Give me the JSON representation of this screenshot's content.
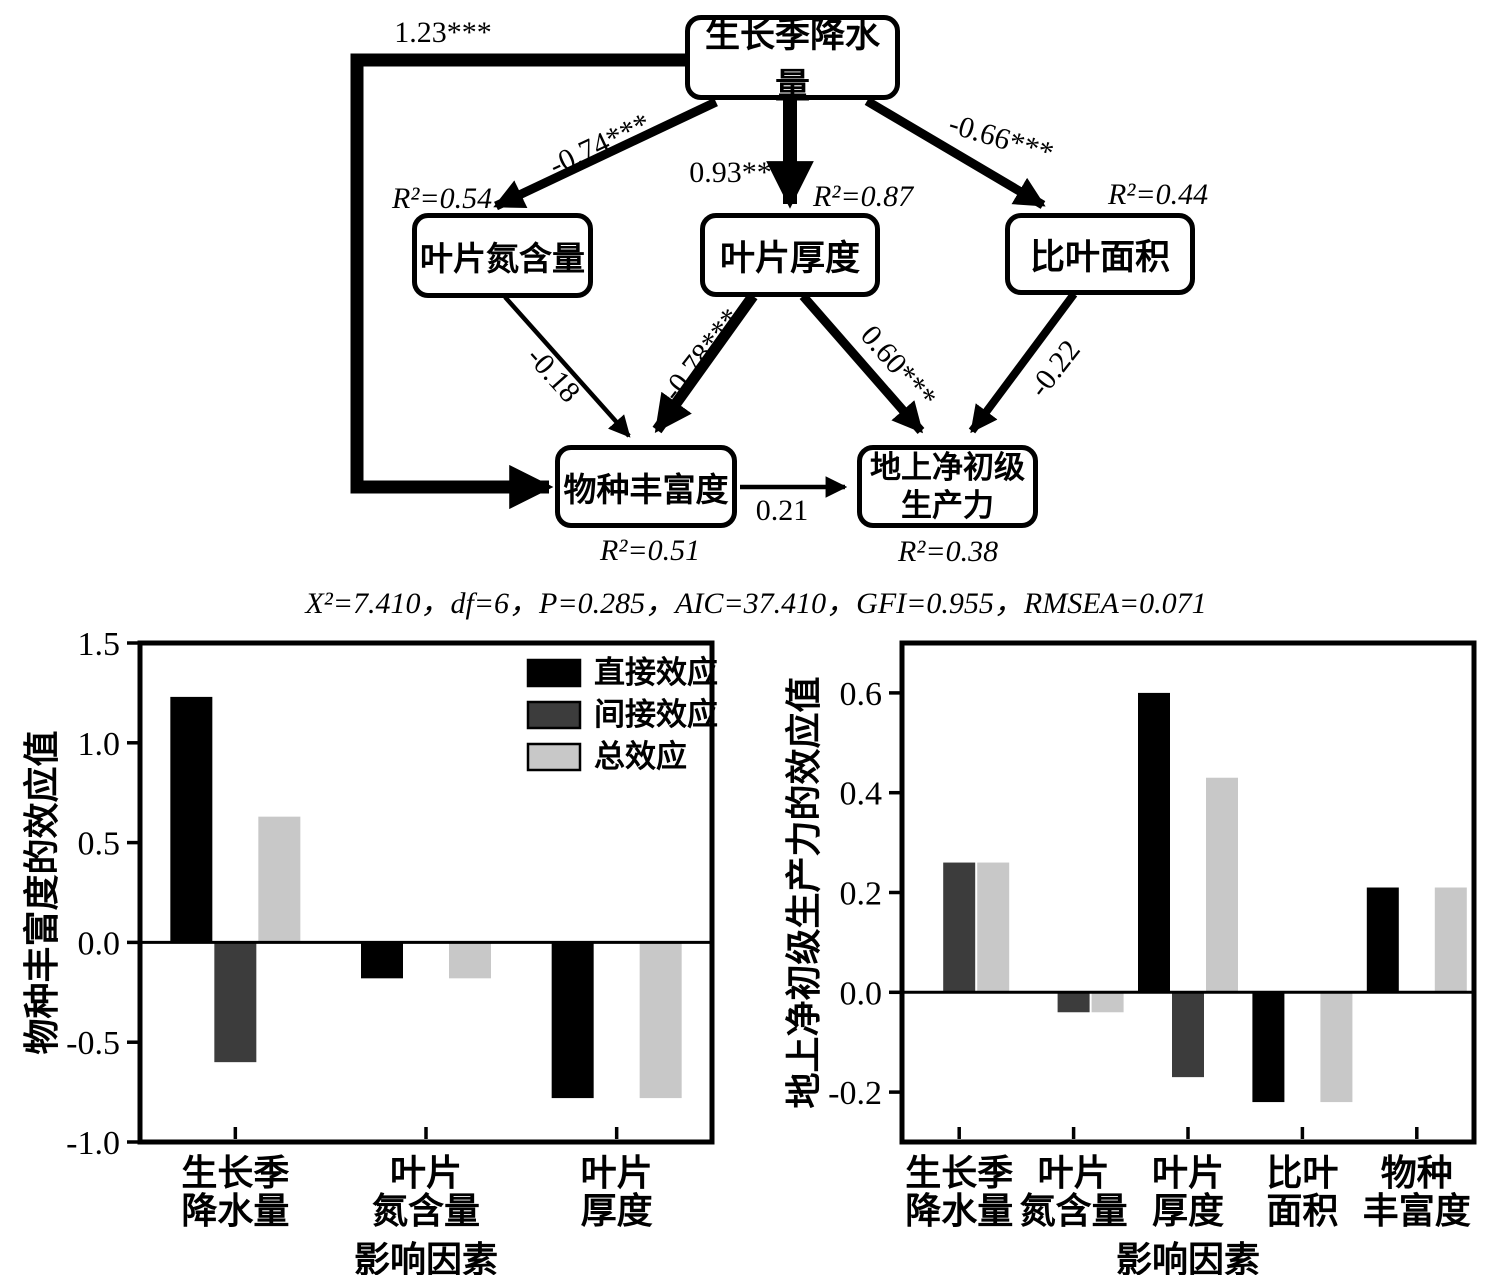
{
  "sem": {
    "nodes": {
      "gsp": "生长季降水量",
      "lnc": "叶片氮含量",
      "lt": "叶片厚度",
      "sla": "比叶面积",
      "sr": "物种丰富度",
      "anpp": "地上净初级\n生产力"
    },
    "paths": {
      "gsp_sr": "1.23***",
      "gsp_lnc": "-0.74***",
      "gsp_lt": "0.93***",
      "gsp_sla": "-0.66***",
      "lnc_sr": "-0.18",
      "lt_sr": "-0.78***",
      "lt_anpp": "0.60***",
      "sla_anpp": "-0.22",
      "sr_anpp": "0.21"
    },
    "r2": {
      "lnc": "R²=0.54",
      "lt": "R²=0.87",
      "sla": "R²=0.44",
      "sr": "R²=0.51",
      "anpp": "R²=0.38"
    },
    "fit_stats": "X²=7.410，df=6，P=0.285，AIC=37.410，GFI=0.955，RMSEA=0.071"
  },
  "colors": {
    "direct": "#000000",
    "indirect": "#3c3c3c",
    "total": "#c8c8c8",
    "axis": "#000000",
    "background": "#ffffff"
  },
  "chart_data": [
    {
      "type": "bar",
      "title": "",
      "ylabel": "物种丰富度的效应值",
      "xlabel": "影响因素",
      "categories": [
        [
          "生长季",
          "降水量"
        ],
        [
          "叶片",
          "氮含量"
        ],
        [
          "叶片",
          "厚度"
        ]
      ],
      "series": [
        {
          "name": "直接效应",
          "color": "#000000",
          "values": [
            1.23,
            -0.18,
            -0.78
          ]
        },
        {
          "name": "间接效应",
          "color": "#3c3c3c",
          "values": [
            -0.6,
            null,
            null
          ]
        },
        {
          "name": "总效应",
          "color": "#c8c8c8",
          "values": [
            0.63,
            -0.18,
            -0.78
          ]
        }
      ],
      "ylim": [
        -1.0,
        1.5
      ],
      "yticks": [
        "1.5",
        "1.0",
        "0.5",
        "0.0",
        "-0.5",
        "-1.0"
      ],
      "grid": false,
      "legend": true,
      "legend_position": "top-right-inside"
    },
    {
      "type": "bar",
      "title": "",
      "ylabel": "地上净初级生产力的效应值",
      "xlabel": "影响因素",
      "categories": [
        [
          "生长季",
          "降水量"
        ],
        [
          "叶片",
          "氮含量"
        ],
        [
          "叶片",
          "厚度"
        ],
        [
          "比叶",
          "面积"
        ],
        [
          "物种",
          "丰富度"
        ]
      ],
      "series": [
        {
          "name": "直接效应",
          "color": "#000000",
          "values": [
            null,
            null,
            0.6,
            -0.22,
            0.21
          ]
        },
        {
          "name": "间接效应",
          "color": "#3c3c3c",
          "values": [
            0.26,
            -0.04,
            -0.17,
            null,
            null
          ]
        },
        {
          "name": "总效应",
          "color": "#c8c8c8",
          "values": [
            0.26,
            -0.04,
            0.43,
            -0.22,
            0.21
          ]
        }
      ],
      "ylim": [
        -0.3,
        0.7
      ],
      "yticks": [
        "0.6",
        "0.4",
        "0.2",
        "0.0",
        "-0.2"
      ],
      "grid": false,
      "legend": false
    }
  ]
}
